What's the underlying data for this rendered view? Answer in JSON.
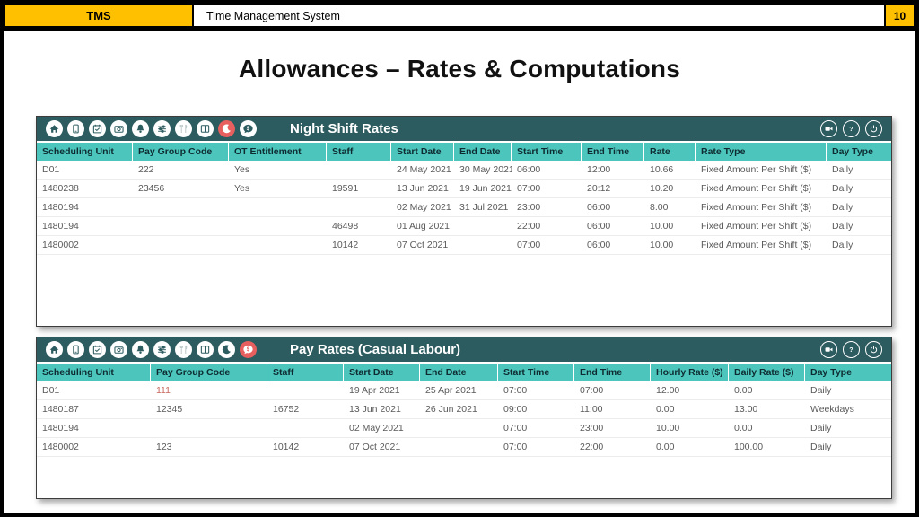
{
  "header": {
    "app_abbr": "TMS",
    "app_title": "Time Management System",
    "page_number": "10"
  },
  "slide_title": "Allowances – Rates & Computations",
  "colors": {
    "accent_yellow": "#FFC000",
    "toolbar_teal": "#2d5c60",
    "table_header_teal": "#4cc6bd",
    "active_red": "#e85f5f"
  },
  "toolbar": {
    "left_icons": [
      "home",
      "tablet",
      "calendar-check",
      "camera",
      "bell",
      "sliders",
      "utensils",
      "columns",
      "moon",
      "comment-dollar"
    ],
    "right_icons": [
      "video-camera",
      "help",
      "power"
    ],
    "muted_icon": "utensils"
  },
  "panels": [
    {
      "title": "Night Shift Rates",
      "active_icon": "moon",
      "columns": [
        "Scheduling Unit",
        "Pay Group Code",
        "OT Entitlement",
        "Staff",
        "Start Date",
        "End Date",
        "Start Time",
        "End Time",
        "Rate",
        "Rate Type",
        "Day Type"
      ],
      "rows": [
        [
          "D01",
          "222",
          "Yes",
          "",
          "24 May 2021",
          "30 May 2021",
          "06:00",
          "12:00",
          "10.66",
          "Fixed Amount Per Shift ($)",
          "Daily"
        ],
        [
          "1480238",
          "23456",
          "Yes",
          "19591",
          "13 Jun 2021",
          "19 Jun 2021",
          "07:00",
          "20:12",
          "10.20",
          "Fixed Amount Per Shift ($)",
          "Daily"
        ],
        [
          "1480194",
          "",
          "",
          "",
          "02 May 2021",
          "31 Jul 2021",
          "23:00",
          "06:00",
          "8.00",
          "Fixed Amount Per Shift ($)",
          "Daily"
        ],
        [
          "1480194",
          "",
          "",
          "46498",
          "01 Aug 2021",
          "",
          "22:00",
          "06:00",
          "10.00",
          "Fixed Amount Per Shift ($)",
          "Daily"
        ],
        [
          "1480002",
          "",
          "",
          "10142",
          "07 Oct 2021",
          "",
          "07:00",
          "06:00",
          "10.00",
          "Fixed Amount Per Shift ($)",
          "Daily"
        ]
      ],
      "highlight_cells": []
    },
    {
      "title": "Pay Rates (Casual Labour)",
      "active_icon": "comment-dollar",
      "columns": [
        "Scheduling Unit",
        "Pay Group Code",
        "Staff",
        "Start Date",
        "End Date",
        "Start Time",
        "End Time",
        "Hourly Rate ($)",
        "Daily Rate ($)",
        "Day Type"
      ],
      "rows": [
        [
          "D01",
          "111",
          "",
          "19 Apr 2021",
          "25 Apr 2021",
          "07:00",
          "07:00",
          "12.00",
          "0.00",
          "Daily"
        ],
        [
          "1480187",
          "12345",
          "16752",
          "13 Jun 2021",
          "26 Jun 2021",
          "09:00",
          "11:00",
          "0.00",
          "13.00",
          "Weekdays"
        ],
        [
          "1480194",
          "",
          "",
          "02 May 2021",
          "",
          "07:00",
          "23:00",
          "10.00",
          "0.00",
          "Daily"
        ],
        [
          "1480002",
          "123",
          "10142",
          "07 Oct 2021",
          "",
          "07:00",
          "22:00",
          "0.00",
          "100.00",
          "Daily"
        ]
      ],
      "highlight_cells": [
        [
          0,
          1
        ]
      ]
    }
  ]
}
